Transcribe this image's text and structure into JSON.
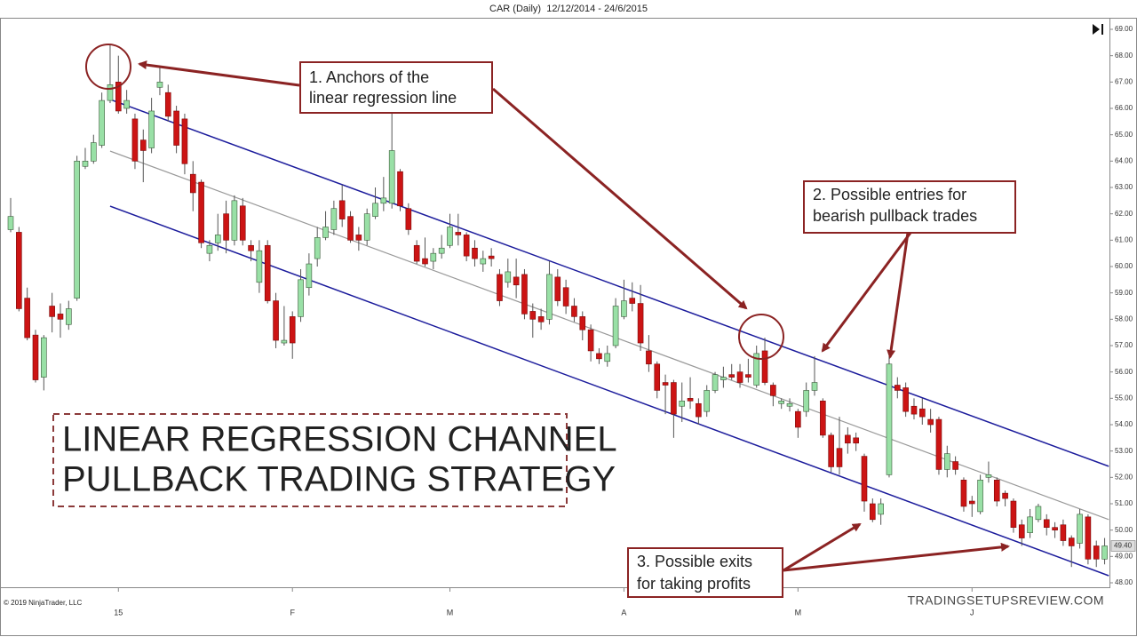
{
  "chart_data": {
    "type": "candlestick",
    "title": "CAR (Daily)  12/12/2014 - 24/6/2015",
    "copyright": "© 2019 NinjaTrader, LLC",
    "watermark": "TRADINGSETUPSREVIEW.COM",
    "headline": [
      "LINEAR REGRESSION CHANNEL",
      "PULLBACK TRADING STRATEGY"
    ],
    "annotations": [
      {
        "lines": [
          "1. Anchors of the",
          "linear regression line"
        ]
      },
      {
        "lines": [
          "2. Possible entries for",
          "bearish pullback trades"
        ]
      },
      {
        "lines": [
          "3. Possible exits",
          "for taking profits"
        ]
      }
    ],
    "up_color": "#99e0a6",
    "down_color": "#cc1414",
    "ylim": [
      48,
      69
    ],
    "yticks": [
      {
        "value": 48,
        "label": "48.00"
      },
      {
        "value": 49,
        "label": "49.00"
      },
      {
        "value": 50,
        "label": "50.00"
      },
      {
        "value": 51,
        "label": "51.00"
      },
      {
        "value": 52,
        "label": "52.00"
      },
      {
        "value": 53,
        "label": "53.00"
      },
      {
        "value": 54,
        "label": "54.00"
      },
      {
        "value": 55,
        "label": "55.00"
      },
      {
        "value": 56,
        "label": "56.00"
      },
      {
        "value": 57,
        "label": "57.00"
      },
      {
        "value": 58,
        "label": "58.00"
      },
      {
        "value": 59,
        "label": "59.00"
      },
      {
        "value": 60,
        "label": "60.00"
      },
      {
        "value": 61,
        "label": "61.00"
      },
      {
        "value": 62,
        "label": "62.00"
      },
      {
        "value": 63,
        "label": "63.00"
      },
      {
        "value": 64,
        "label": "64.00"
      },
      {
        "value": 65,
        "label": "65.00"
      },
      {
        "value": 66,
        "label": "66.00"
      },
      {
        "value": 67,
        "label": "67.00"
      },
      {
        "value": 68,
        "label": "68.00"
      },
      {
        "value": 69,
        "label": "69.00"
      }
    ],
    "xticks": [
      {
        "value": 13,
        "label": "15"
      },
      {
        "value": 34,
        "label": "F"
      },
      {
        "value": 53,
        "label": "M"
      },
      {
        "value": 74,
        "label": "A"
      },
      {
        "value": 95,
        "label": "M"
      },
      {
        "value": 116,
        "label": "J"
      }
    ],
    "last_price": {
      "value": 49.4,
      "label": "49.40"
    },
    "open": [
      61.4,
      61.3,
      58.8,
      57.4,
      55.8,
      58.5,
      58.2,
      57.8,
      58.8,
      63.8,
      64.0,
      64.6,
      66.3,
      67.0,
      66.0,
      65.6,
      64.8,
      64.5,
      66.8,
      66.6,
      65.9,
      65.6,
      63.5,
      63.2,
      60.5,
      60.9,
      62.0,
      61.0,
      62.3,
      60.8,
      59.4,
      60.8,
      58.7,
      57.1,
      58.1,
      58.1,
      59.2,
      60.3,
      61.1,
      61.4,
      62.5,
      61.9,
      61.2,
      61.0,
      61.9,
      62.4,
      62.4,
      63.6,
      62.2,
      60.8,
      60.3,
      60.2,
      60.5,
      60.8,
      61.3,
      61.2,
      60.7,
      60.1,
      60.4,
      59.7,
      59.4,
      59.6,
      59.7,
      58.3,
      58.1,
      58.0,
      59.6,
      59.2,
      58.5,
      58.1,
      57.6,
      56.7,
      56.4,
      57.0,
      58.1,
      58.8,
      58.6,
      56.8,
      56.3,
      55.6,
      55.6,
      54.7,
      55.0,
      54.8,
      54.5,
      55.3,
      55.7,
      55.9,
      56.0,
      55.9,
      55.5,
      56.8,
      55.5,
      54.8,
      54.7,
      54.5,
      54.5,
      55.3,
      54.9,
      53.6,
      53.1,
      53.6,
      53.5,
      52.8,
      51.0,
      50.6,
      52.1,
      55.5,
      55.4,
      54.7,
      54.6,
      54.2,
      54.2,
      52.3,
      52.6,
      51.9,
      51.1,
      50.7,
      52.0,
      51.9,
      51.4,
      51.1,
      50.2,
      49.9,
      50.4,
      50.4,
      50.1,
      50.2,
      49.7,
      49.5,
      50.5,
      49.4,
      48.9
    ],
    "high": [
      62.6,
      61.5,
      59.2,
      57.6,
      57.4,
      59.0,
      58.6,
      58.7,
      64.2,
      64.5,
      65.0,
      66.6,
      68.4,
      68.0,
      66.7,
      65.8,
      65.2,
      66.4,
      67.6,
      66.9,
      66.1,
      65.8,
      64.0,
      63.3,
      61.0,
      62.0,
      62.5,
      62.7,
      62.6,
      61.0,
      61.0,
      61.0,
      59.0,
      58.5,
      58.3,
      59.9,
      60.5,
      61.5,
      62.1,
      62.5,
      63.1,
      62.1,
      61.5,
      62.2,
      63.0,
      63.4,
      66.0,
      63.7,
      62.4,
      61.0,
      61.1,
      60.7,
      61.2,
      62.0,
      62.0,
      61.3,
      61.0,
      60.6,
      60.7,
      59.9,
      60.3,
      60.3,
      59.9,
      58.6,
      58.4,
      60.2,
      59.9,
      59.5,
      58.8,
      58.3,
      57.8,
      56.9,
      57.0,
      58.8,
      59.5,
      59.4,
      59.3,
      57.4,
      56.4,
      55.9,
      55.7,
      55.6,
      55.8,
      55.0,
      55.5,
      56.0,
      56.2,
      56.3,
      56.3,
      56.5,
      57.0,
      57.3,
      55.6,
      55.0,
      55.0,
      54.6,
      55.6,
      56.6,
      55.0,
      53.7,
      54.3,
      53.9,
      53.7,
      52.9,
      51.2,
      51.2,
      56.6,
      55.8,
      55.6,
      55.0,
      55.0,
      54.6,
      54.3,
      53.2,
      52.8,
      52.0,
      51.3,
      52.1,
      52.6,
      52.0,
      51.5,
      51.2,
      50.4,
      50.8,
      51.0,
      50.6,
      50.3,
      50.4,
      49.8,
      50.8,
      50.6,
      49.6,
      49.7
    ],
    "low": [
      61.3,
      58.3,
      57.2,
      55.6,
      55.3,
      57.5,
      57.3,
      57.6,
      58.7,
      63.7,
      63.9,
      64.5,
      66.2,
      65.8,
      65.8,
      63.7,
      63.2,
      64.3,
      66.5,
      65.5,
      64.3,
      63.5,
      62.1,
      60.7,
      60.2,
      60.6,
      60.5,
      60.8,
      60.8,
      60.2,
      59.0,
      58.6,
      56.9,
      57.0,
      56.5,
      57.9,
      58.9,
      60.0,
      61.0,
      61.2,
      61.5,
      60.9,
      60.6,
      60.8,
      61.8,
      62.1,
      62.2,
      62.1,
      61.2,
      60.1,
      60.0,
      59.9,
      60.3,
      60.7,
      60.8,
      60.2,
      60.0,
      59.8,
      60.0,
      58.5,
      59.2,
      58.8,
      58.0,
      57.3,
      57.6,
      57.8,
      58.5,
      58.2,
      57.9,
      57.2,
      56.4,
      56.3,
      56.2,
      56.9,
      58.0,
      58.3,
      56.8,
      56.0,
      55.0,
      54.4,
      53.5,
      54.1,
      54.6,
      54.0,
      54.3,
      55.2,
      55.4,
      55.7,
      55.4,
      55.6,
      55.4,
      55.5,
      54.7,
      54.6,
      54.5,
      53.5,
      54.3,
      55.1,
      53.5,
      52.2,
      52.1,
      52.9,
      53.0,
      50.7,
      50.3,
      50.2,
      52.0,
      55.0,
      54.3,
      54.2,
      54.0,
      53.7,
      52.1,
      52.0,
      52.1,
      50.7,
      50.5,
      50.6,
      51.8,
      50.9,
      50.9,
      49.9,
      49.4,
      49.7,
      50.3,
      49.8,
      49.7,
      49.4,
      48.6,
      49.3,
      48.7,
      48.6,
      48.7
    ],
    "close": [
      61.9,
      58.4,
      57.3,
      55.7,
      57.3,
      58.1,
      58.0,
      58.4,
      64.0,
      64.0,
      64.7,
      66.3,
      66.9,
      65.9,
      66.3,
      64.0,
      64.4,
      65.9,
      67.0,
      65.7,
      64.6,
      63.9,
      62.8,
      60.9,
      60.8,
      61.2,
      61.0,
      62.5,
      61.0,
      60.6,
      60.6,
      58.7,
      57.2,
      57.2,
      57.1,
      59.5,
      60.1,
      61.1,
      61.5,
      62.2,
      61.8,
      61.0,
      61.0,
      62.0,
      62.4,
      62.6,
      64.4,
      62.3,
      61.4,
      60.2,
      60.1,
      60.5,
      60.7,
      61.5,
      61.2,
      60.4,
      60.3,
      60.3,
      60.3,
      58.7,
      59.8,
      59.3,
      58.2,
      58.0,
      57.9,
      59.7,
      58.7,
      58.5,
      58.1,
      57.6,
      56.8,
      56.5,
      56.7,
      58.5,
      58.7,
      58.6,
      57.1,
      56.3,
      55.3,
      55.5,
      54.4,
      54.9,
      54.9,
      54.3,
      55.3,
      55.9,
      55.8,
      55.8,
      55.6,
      55.8,
      56.7,
      55.6,
      55.1,
      54.9,
      54.8,
      53.9,
      55.3,
      55.6,
      53.6,
      52.4,
      52.4,
      53.3,
      53.3,
      51.1,
      50.4,
      51.0,
      56.3,
      55.3,
      54.5,
      54.4,
      54.3,
      54.0,
      52.3,
      52.9,
      52.3,
      50.9,
      51.0,
      51.9,
      52.1,
      51.1,
      51.2,
      50.1,
      49.7,
      50.5,
      50.9,
      50.1,
      50.0,
      49.6,
      49.4,
      50.6,
      48.9,
      48.9,
      49.4
    ],
    "channel": {
      "x": [
        12,
        132.5
      ],
      "upper": {
        "color": "#1c1c9c",
        "values": [
          66.34,
          52.42
        ]
      },
      "middle": {
        "color": "#999999",
        "values": [
          64.38,
          50.4
        ]
      },
      "lower": {
        "color": "#1c1c9c",
        "values": [
          62.29,
          48.27
        ]
      }
    }
  }
}
